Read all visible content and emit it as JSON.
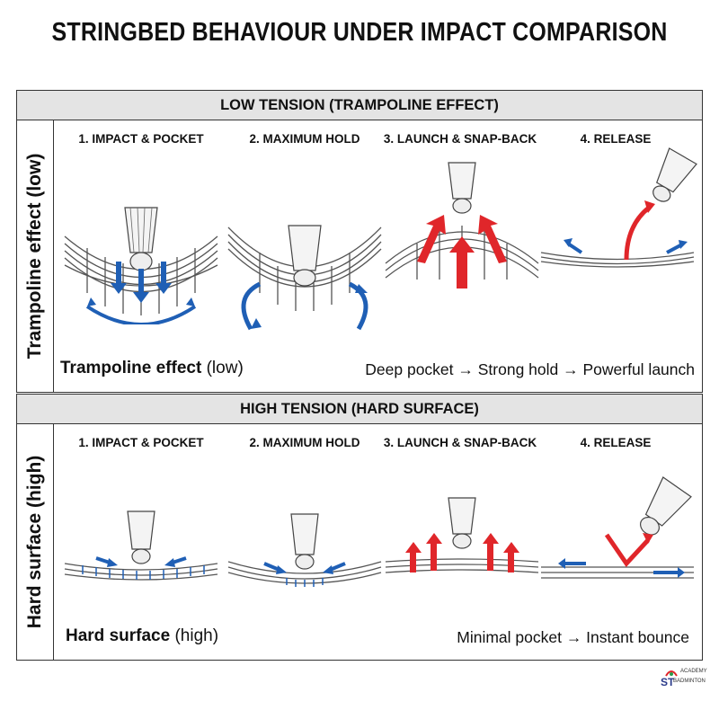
{
  "title": "STRINGBED BEHAVIOUR UNDER IMPACT COMPARISON",
  "low": {
    "header": "LOW TENSION (TRAMPOLINE EFFECT)",
    "side_label": "Trampoline effect (low)",
    "caption_bold": "Trampoline effect",
    "caption_rest": " (low)",
    "caption_right": "Deep pocket → Strong hold → Powerful launch",
    "steps": [
      "1. IMPACT & POCKET",
      "2. MAXIMUM HOLD",
      "3. LAUNCH & SNAP-BACK",
      "4. RELEASE"
    ]
  },
  "high": {
    "header": "HIGH TENSION (HARD SURFACE)",
    "side_label": "Hard surface (high)",
    "caption_bold": "Hard surface",
    "caption_rest": " (high)",
    "caption_right": "Minimal pocket → Instant bounce",
    "steps": [
      "1. IMPACT & POCKET",
      "2. MAXIMUM HOLD",
      "3. LAUNCH & SNAP-BACK",
      "4. RELEASE"
    ]
  },
  "logo": {
    "line1": "ACADEMY",
    "line2": "ST",
    "line3": "BADMINTON"
  },
  "colors": {
    "blue_arrow": "#1f5fb5",
    "red_arrow": "#e0262a",
    "header_bg": "#e4e4e4",
    "string": "#555555"
  }
}
